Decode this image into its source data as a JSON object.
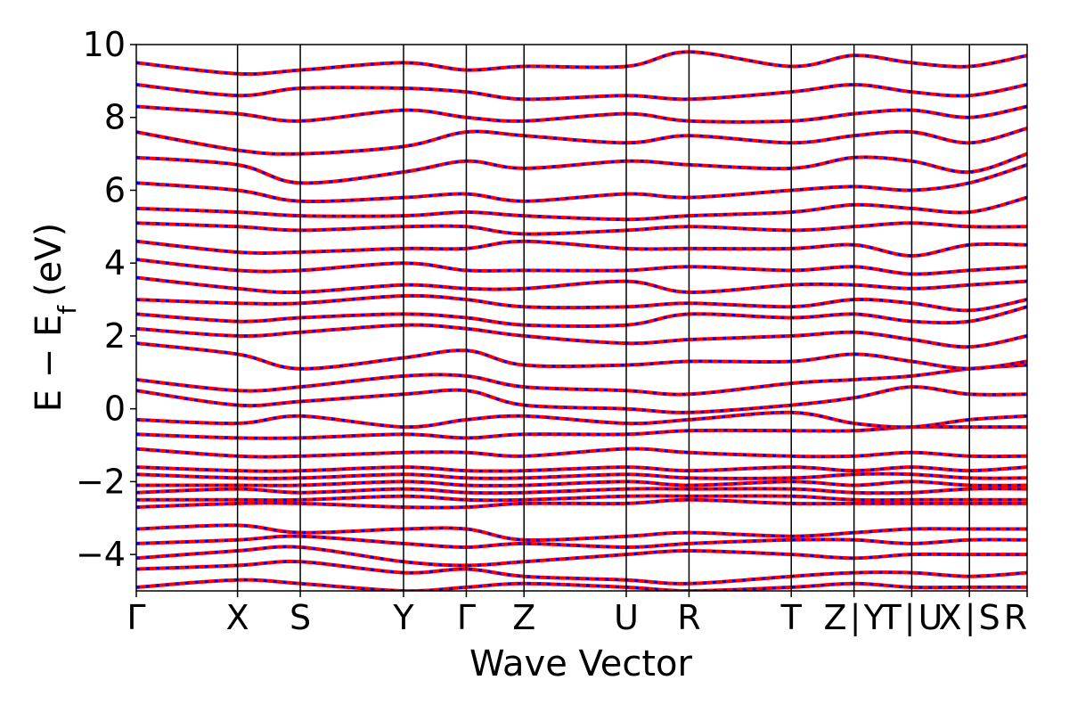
{
  "chart_data": {
    "type": "line",
    "title": "",
    "xlabel": "Wave Vector",
    "ylabel": "E − E",
    "ylabel_sub": "f",
    "ylabel_unit": "(eV)",
    "ylim": [
      -5,
      10
    ],
    "xlim": [
      0,
      8.8
    ],
    "yticks": [
      -4,
      -2,
      0,
      2,
      4,
      6,
      8,
      10
    ],
    "ytick_labels": [
      "−4",
      "−2",
      "0",
      "2",
      "4",
      "6",
      "8",
      "10"
    ],
    "kpoint_positions": [
      0,
      1.0,
      1.62,
      2.64,
      3.26,
      3.83,
      4.84,
      5.46,
      6.47,
      7.09,
      7.66,
      8.23,
      8.8
    ],
    "kpoint_labels": [
      {
        "x": 0,
        "label": "Γ"
      },
      {
        "x": 1.0,
        "label": "X"
      },
      {
        "x": 1.62,
        "label": "S"
      },
      {
        "x": 2.64,
        "label": "Y"
      },
      {
        "x": 3.26,
        "label": "Γ"
      },
      {
        "x": 3.83,
        "label": "Z"
      },
      {
        "x": 4.84,
        "label": "U"
      },
      {
        "x": 5.46,
        "label": "R"
      },
      {
        "x": 6.47,
        "label": "T"
      },
      {
        "x": 7.09,
        "label": "Z∣Y"
      },
      {
        "x": 7.66,
        "label": "T∣U"
      },
      {
        "x": 8.23,
        "label": "X∣S"
      },
      {
        "x": 8.8,
        "label": "R"
      }
    ],
    "grid": false,
    "series": [
      {
        "color": "#ff0000",
        "style": "solid"
      },
      {
        "color": "#0000ff",
        "style": "dashed"
      }
    ],
    "bands_approx": [
      {
        "y": [
          -4.9,
          -4.7,
          -4.8,
          -5.0,
          -4.9,
          -4.8,
          -4.9,
          -5.0,
          -4.9,
          -4.8,
          -4.9,
          -4.9,
          -4.9
        ]
      },
      {
        "y": [
          -4.4,
          -4.3,
          -4.2,
          -4.5,
          -4.4,
          -4.6,
          -4.7,
          -4.8,
          -4.6,
          -4.5,
          -4.5,
          -4.6,
          -4.5
        ]
      },
      {
        "y": [
          -4.1,
          -3.9,
          -3.8,
          -4.2,
          -4.3,
          -4.2,
          -4.0,
          -3.9,
          -4.0,
          -4.1,
          -4.0,
          -4.0,
          -4.0
        ]
      },
      {
        "y": [
          -3.7,
          -3.6,
          -3.5,
          -3.7,
          -3.8,
          -3.7,
          -3.8,
          -3.7,
          -3.6,
          -3.6,
          -3.7,
          -3.6,
          -3.6
        ]
      },
      {
        "y": [
          -3.3,
          -3.2,
          -3.4,
          -3.3,
          -3.3,
          -3.6,
          -3.5,
          -3.4,
          -3.5,
          -3.4,
          -3.3,
          -3.3,
          -3.3
        ]
      },
      {
        "y": [
          -2.7,
          -2.6,
          -2.6,
          -2.7,
          -2.7,
          -2.6,
          -2.6,
          -2.5,
          -2.6,
          -2.6,
          -2.6,
          -2.6,
          -2.6
        ]
      },
      {
        "y": [
          -2.5,
          -2.5,
          -2.5,
          -2.4,
          -2.5,
          -2.5,
          -2.4,
          -2.4,
          -2.4,
          -2.5,
          -2.5,
          -2.5,
          -2.5
        ]
      },
      {
        "y": [
          -2.3,
          -2.2,
          -2.3,
          -2.2,
          -2.3,
          -2.3,
          -2.2,
          -2.2,
          -2.2,
          -2.3,
          -2.3,
          -2.2,
          -2.2
        ]
      },
      {
        "y": [
          -2.1,
          -2.1,
          -2.1,
          -2.0,
          -2.1,
          -2.1,
          -2.0,
          -2.1,
          -2.0,
          -2.1,
          -2.0,
          -2.1,
          -2.1
        ]
      },
      {
        "y": [
          -1.8,
          -1.9,
          -1.9,
          -1.8,
          -1.9,
          -1.9,
          -1.8,
          -1.9,
          -1.9,
          -1.8,
          -1.8,
          -1.9,
          -1.9
        ]
      },
      {
        "y": [
          -1.6,
          -1.7,
          -1.7,
          -1.6,
          -1.7,
          -1.7,
          -1.6,
          -1.7,
          -1.6,
          -1.7,
          -1.6,
          -1.7,
          -1.6
        ]
      },
      {
        "y": [
          -1.1,
          -1.3,
          -1.3,
          -1.2,
          -1.2,
          -1.3,
          -1.1,
          -1.2,
          -1.3,
          -1.3,
          -1.2,
          -1.3,
          -1.3
        ]
      },
      {
        "y": [
          -0.7,
          -0.8,
          -0.8,
          -0.7,
          -0.8,
          -0.7,
          -0.7,
          -0.6,
          -0.6,
          -0.6,
          -0.5,
          -0.5,
          -0.5
        ]
      },
      {
        "y": [
          -0.3,
          -0.4,
          -0.2,
          -0.5,
          -0.3,
          -0.2,
          -0.4,
          -0.3,
          -0.1,
          -0.4,
          -0.5,
          -0.3,
          -0.2
        ]
      },
      {
        "y": [
          0.5,
          0.1,
          0.2,
          0.4,
          0.5,
          0.1,
          0.0,
          -0.1,
          0.1,
          0.3,
          0.6,
          0.4,
          0.4
        ]
      },
      {
        "y": [
          0.8,
          0.5,
          0.6,
          0.9,
          0.9,
          0.6,
          0.5,
          0.4,
          0.7,
          0.8,
          0.9,
          1.1,
          1.2
        ]
      },
      {
        "y": [
          1.8,
          1.5,
          1.1,
          1.4,
          1.6,
          1.2,
          1.2,
          1.3,
          1.3,
          1.5,
          1.3,
          1.1,
          1.3
        ]
      },
      {
        "y": [
          2.2,
          2.0,
          2.1,
          2.3,
          2.2,
          2.0,
          1.8,
          1.9,
          2.0,
          2.1,
          1.9,
          1.7,
          2.0
        ]
      },
      {
        "y": [
          2.6,
          2.4,
          2.5,
          2.6,
          2.5,
          2.3,
          2.3,
          2.6,
          2.5,
          2.6,
          2.4,
          2.4,
          2.8
        ]
      },
      {
        "y": [
          3.0,
          2.9,
          2.9,
          3.1,
          3.0,
          2.8,
          2.8,
          2.9,
          2.8,
          3.0,
          2.9,
          2.7,
          3.0
        ]
      },
      {
        "y": [
          3.6,
          3.3,
          3.2,
          3.4,
          3.3,
          3.3,
          3.5,
          3.2,
          3.4,
          3.4,
          3.3,
          3.4,
          3.5
        ]
      },
      {
        "y": [
          4.1,
          3.8,
          3.8,
          4.0,
          3.8,
          3.8,
          3.8,
          3.9,
          3.8,
          3.9,
          3.7,
          3.8,
          3.9
        ]
      },
      {
        "y": [
          4.6,
          4.3,
          4.3,
          4.4,
          4.4,
          4.6,
          4.4,
          4.4,
          4.4,
          4.5,
          4.2,
          4.5,
          4.5
        ]
      },
      {
        "y": [
          5.1,
          5.0,
          4.9,
          5.0,
          5.0,
          4.8,
          4.9,
          5.0,
          4.9,
          5.0,
          5.1,
          5.0,
          5.0
        ]
      },
      {
        "y": [
          5.5,
          5.4,
          5.3,
          5.3,
          5.4,
          5.3,
          5.2,
          5.3,
          5.4,
          5.6,
          5.5,
          5.4,
          5.8
        ]
      },
      {
        "y": [
          6.2,
          6.0,
          5.7,
          5.8,
          5.9,
          5.7,
          5.9,
          5.8,
          6.0,
          6.1,
          6.0,
          6.2,
          6.7
        ]
      },
      {
        "y": [
          6.9,
          6.7,
          6.2,
          6.5,
          6.8,
          6.6,
          6.8,
          6.7,
          6.6,
          6.9,
          6.8,
          6.5,
          7.0
        ]
      },
      {
        "y": [
          7.6,
          7.1,
          7.0,
          7.2,
          7.6,
          7.5,
          7.3,
          7.5,
          7.3,
          7.5,
          7.6,
          7.3,
          7.7
        ]
      },
      {
        "y": [
          8.3,
          8.1,
          7.9,
          8.2,
          8.0,
          7.9,
          8.1,
          7.9,
          7.9,
          8.1,
          8.2,
          8.0,
          8.3
        ]
      },
      {
        "y": [
          8.9,
          8.6,
          8.8,
          8.8,
          8.7,
          8.5,
          8.6,
          8.5,
          8.7,
          8.9,
          8.7,
          8.6,
          8.9
        ]
      },
      {
        "y": [
          9.5,
          9.2,
          9.3,
          9.5,
          9.3,
          9.4,
          9.4,
          9.8,
          9.4,
          9.7,
          9.5,
          9.4,
          9.7
        ]
      }
    ]
  }
}
